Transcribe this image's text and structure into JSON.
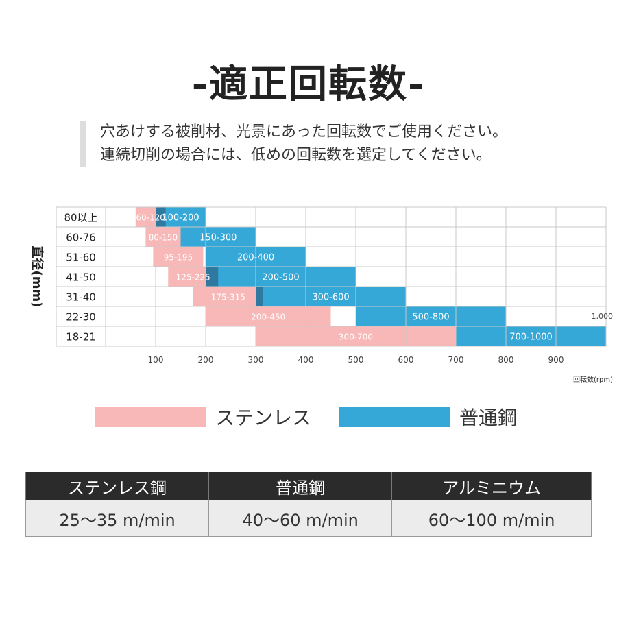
{
  "title": "-適正回転数-",
  "intro": [
    "穴あけする被削材、光景にあった回転数でご使用ください。",
    "連続切削の場合には、低めの回転数を選定してください。"
  ],
  "colors": {
    "stainless": "#f8b8b8",
    "steel": "#35a8d8",
    "overlap": "#2f78a0",
    "grid": "#c8c8c8"
  },
  "chart_data": {
    "type": "bar",
    "orientation": "horizontal-range",
    "ylabel": "直径(mm)",
    "xlabel": "回転数(rpm)",
    "xlim": [
      0,
      1000
    ],
    "xticks": [
      "100",
      "200",
      "300",
      "400",
      "500",
      "600",
      "700",
      "800",
      "900"
    ],
    "xmax_label": "1,000",
    "grid": true,
    "categories": [
      "80以上",
      "60-76",
      "51-60",
      "41-50",
      "31-40",
      "22-30",
      "18-21"
    ],
    "series": [
      {
        "name": "ステンレス",
        "ranges": [
          [
            60,
            120
          ],
          [
            80,
            150
          ],
          [
            95,
            195
          ],
          [
            125,
            225
          ],
          [
            175,
            315
          ],
          [
            200,
            450
          ],
          [
            300,
            700
          ]
        ],
        "labels": [
          "60-120",
          "80-150",
          "95-195",
          "125-225",
          "175-315",
          "200-450",
          "300-700"
        ]
      },
      {
        "name": "普通鋼",
        "ranges": [
          [
            100,
            200
          ],
          [
            150,
            300
          ],
          [
            200,
            400
          ],
          [
            200,
            500
          ],
          [
            300,
            600
          ],
          [
            500,
            800
          ],
          [
            700,
            1000
          ]
        ],
        "labels": [
          "100-200",
          "150-300",
          "200-400",
          "200-500",
          "300-600",
          "500-800",
          "700-1000"
        ]
      }
    ]
  },
  "legend": [
    {
      "label": "ステンレス"
    },
    {
      "label": "普通鋼"
    }
  ],
  "table": {
    "headers": [
      "ステンレス鋼",
      "普通鋼",
      "アルミニウム"
    ],
    "values": [
      "25〜35 m/min",
      "40〜60 m/min",
      "60〜100 m/min"
    ]
  }
}
